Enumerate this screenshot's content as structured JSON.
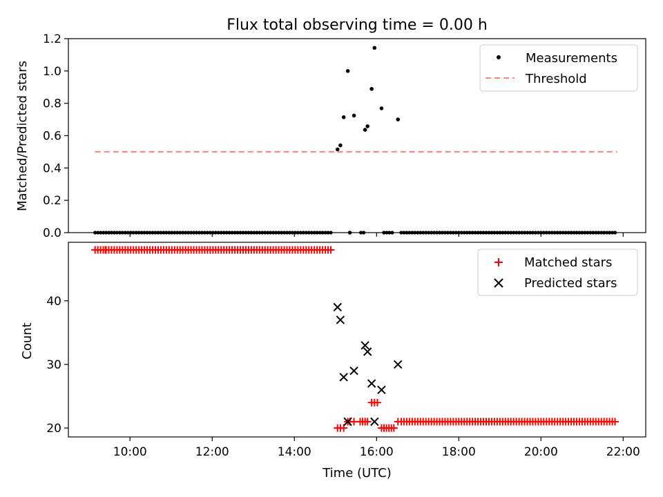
{
  "chart_data": [
    {
      "type": "scatter",
      "title": "Flux total observing time = 0.00 h",
      "xlabel": "",
      "ylabel": "Matched/Predicted stars",
      "xlim_hours": [
        8.5,
        22.55
      ],
      "ylim": [
        0,
        1.2
      ],
      "yticks": [
        0.0,
        0.2,
        0.4,
        0.6,
        0.8,
        1.0,
        1.2
      ],
      "ytick_labels": [
        "0.0",
        "0.2",
        "0.4",
        "0.6",
        "0.8",
        "1.0",
        "1.2"
      ],
      "legend_position": "top-right",
      "series": [
        {
          "name": "Measurements",
          "marker": "dot",
          "color": "#000000",
          "zero_run_ranges": [
            [
              9.15,
              14.93
            ],
            [
              15.62,
              15.72
            ],
            [
              16.18,
              16.42
            ],
            [
              16.6,
              21.85
            ]
          ],
          "zero_run_step_hours": 0.0667,
          "x": [
            15.05,
            15.12,
            15.2,
            15.3,
            15.35,
            15.45,
            15.72,
            15.78,
            15.88,
            15.95,
            16.12,
            16.52
          ],
          "y": [
            0.515,
            0.54,
            0.714,
            1.0,
            0.0,
            0.724,
            0.636,
            0.658,
            0.889,
            1.143,
            0.769,
            0.7
          ]
        },
        {
          "name": "Threshold",
          "style": "dashed",
          "color": "#ff7f7f",
          "x": [
            9.15,
            21.85
          ],
          "y": [
            0.5,
            0.5
          ]
        }
      ]
    },
    {
      "type": "scatter",
      "xlabel": "Time (UTC)",
      "ylabel": "Count",
      "xlim_hours": [
        8.5,
        22.55
      ],
      "ylim": [
        18.6,
        49.2
      ],
      "yticks": [
        20,
        30,
        40
      ],
      "ytick_labels": [
        "20",
        "30",
        "40"
      ],
      "xticks_hours": [
        10,
        12,
        14,
        16,
        18,
        20,
        22
      ],
      "xtick_labels": [
        "10:00",
        "12:00",
        "14:00",
        "16:00",
        "18:00",
        "20:00",
        "22:00"
      ],
      "legend_position": "top-right",
      "series": [
        {
          "name": "Matched stars",
          "marker": "plus",
          "color": "#ff0000",
          "runs": [
            {
              "from": 9.15,
              "to": 14.93,
              "step_hours": 0.0667,
              "value": 48
            },
            {
              "from": 15.6,
              "to": 15.72,
              "step_hours": 0.06,
              "value": 21
            },
            {
              "from": 16.18,
              "to": 16.42,
              "step_hours": 0.06,
              "value": 20
            },
            {
              "from": 16.6,
              "to": 21.85,
              "step_hours": 0.0667,
              "value": 21
            }
          ],
          "x": [
            9.4,
            15.05,
            15.12,
            15.2,
            15.3,
            15.35,
            15.45,
            15.72,
            15.78,
            15.88,
            15.95,
            16.02,
            16.12,
            16.52
          ],
          "y": [
            48,
            20,
            20,
            20,
            21,
            21,
            21,
            21,
            21,
            24,
            24,
            24,
            20,
            21
          ]
        },
        {
          "name": "Predicted stars",
          "marker": "x",
          "color": "#000000",
          "x": [
            15.05,
            15.12,
            15.2,
            15.3,
            15.45,
            15.72,
            15.78,
            15.88,
            15.95,
            16.12,
            16.52
          ],
          "y": [
            39,
            37,
            28,
            21,
            29,
            33,
            32,
            27,
            21,
            26,
            30
          ]
        }
      ]
    }
  ]
}
